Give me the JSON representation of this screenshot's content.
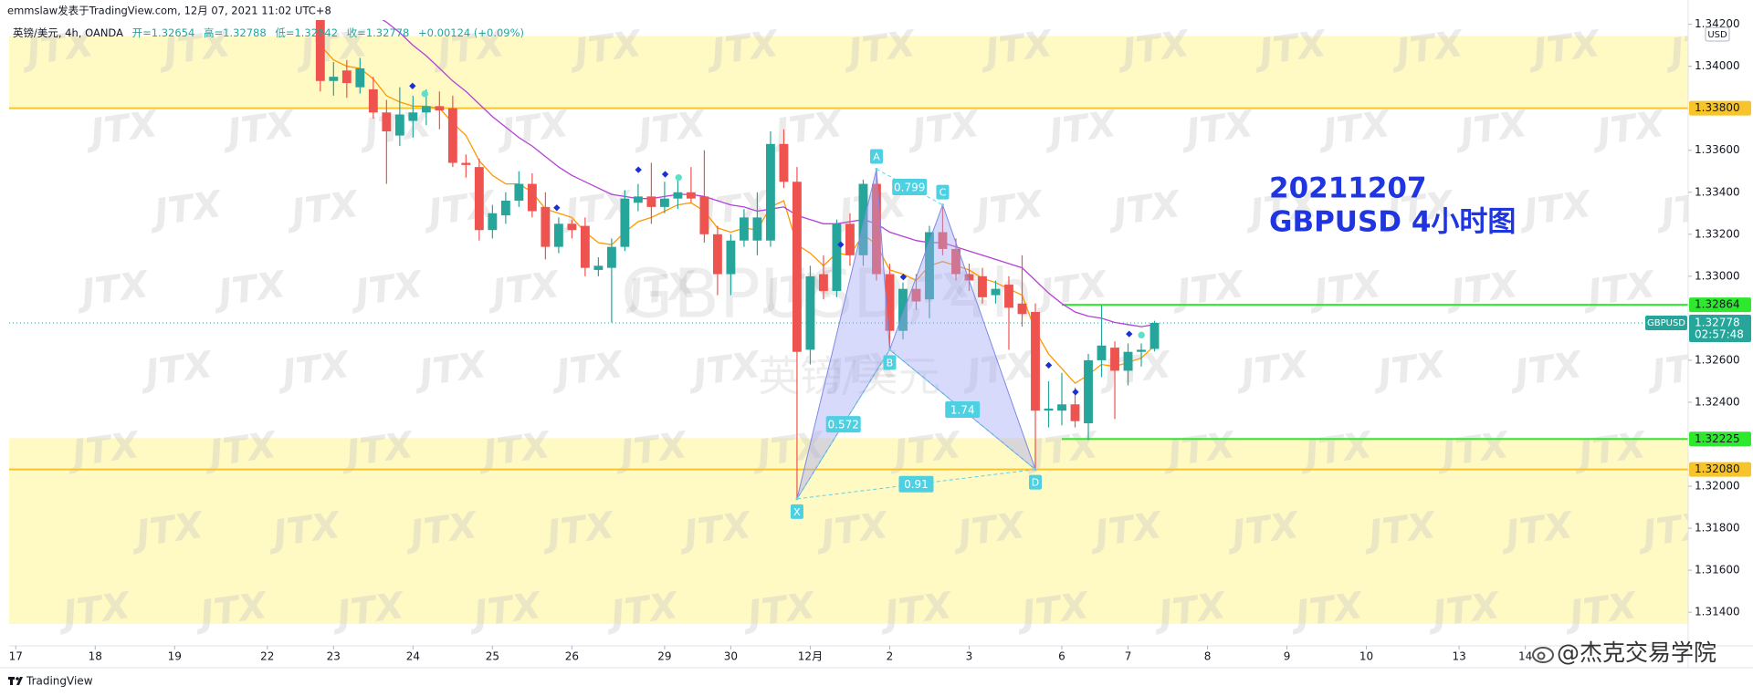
{
  "header": {
    "publisher_line": "emmslaw发表于TradingView.com, 12月 07, 2021 11:02 UTC+8",
    "symbol_line": "英镑/美元, 4h, OANDA",
    "open": "开=1.32654",
    "high": "高=1.32788",
    "low": "低=1.32642",
    "close": "收=1.32778",
    "change": "+0.00124 (+0.09%)"
  },
  "chart_data": {
    "type": "candlestick",
    "up_color": "#26a69a",
    "down_color": "#ef5350",
    "grid": false,
    "xlim": [
      -23.5,
      103.3
    ],
    "xticks": [
      {
        "value": -23,
        "label": "17"
      },
      {
        "value": -17,
        "label": "18"
      },
      {
        "value": -11,
        "label": "19"
      },
      {
        "value": -4,
        "label": "22"
      },
      {
        "value": 1,
        "label": "23"
      },
      {
        "value": 7,
        "label": "24"
      },
      {
        "value": 13,
        "label": "25"
      },
      {
        "value": 19,
        "label": "26"
      },
      {
        "value": 26,
        "label": "29"
      },
      {
        "value": 31,
        "label": "30"
      },
      {
        "value": 37,
        "label": "12月"
      },
      {
        "value": 43,
        "label": "2"
      },
      {
        "value": 49,
        "label": "3"
      },
      {
        "value": 56,
        "label": "6"
      },
      {
        "value": 61,
        "label": "7"
      },
      {
        "value": 67,
        "label": "8"
      },
      {
        "value": 73,
        "label": "9"
      },
      {
        "value": 79,
        "label": "10"
      },
      {
        "value": 86,
        "label": "13"
      },
      {
        "value": 91,
        "label": "14"
      }
    ],
    "ylim": [
      1.3124,
      1.3422
    ],
    "yticks": [
      {
        "value": 1.342,
        "label": "1.34200"
      },
      {
        "value": 1.34,
        "label": "1.34000"
      },
      {
        "value": 1.336,
        "label": "1.33600"
      },
      {
        "value": 1.334,
        "label": "1.33400"
      },
      {
        "value": 1.332,
        "label": "1.33200"
      },
      {
        "value": 1.33,
        "label": "1.33000"
      },
      {
        "value": 1.326,
        "label": "1.32600"
      },
      {
        "value": 1.324,
        "label": "1.32400"
      },
      {
        "value": 1.32,
        "label": "1.32000"
      },
      {
        "value": 1.318,
        "label": "1.31800"
      },
      {
        "value": 1.316,
        "label": "1.31600"
      },
      {
        "value": 1.314,
        "label": "1.31400"
      }
    ],
    "currency": "USD",
    "open": [
      1.343,
      1.3393,
      1.3398,
      1.339,
      1.3389,
      1.3378,
      1.3367,
      1.3374,
      1.3378,
      1.3381,
      1.338,
      1.3354,
      1.3352,
      1.3322,
      1.3329,
      1.3336,
      1.3344,
      1.3333,
      1.3314,
      1.3325,
      1.3324,
      1.3303,
      1.3304,
      1.3314,
      1.3335,
      1.3338,
      1.3333,
      1.3337,
      1.334,
      1.3338,
      1.332,
      1.3301,
      1.3317,
      1.3317,
      1.3317,
      1.3363,
      1.3345,
      1.3265,
      1.3301,
      1.3293,
      1.3325,
      1.331,
      1.3344,
      1.3301,
      1.3274,
      1.3294,
      1.3289,
      1.3321,
      1.3313,
      1.3301,
      1.33,
      1.3291,
      1.3296,
      1.3287,
      1.3283,
      1.3236,
      1.3236,
      1.3239,
      1.323,
      1.326,
      1.3266,
      1.3255,
      1.3264,
      1.32654
    ],
    "high": [
      1.344,
      1.3402,
      1.3403,
      1.3404,
      1.3395,
      1.3384,
      1.339,
      1.3386,
      1.3389,
      1.3388,
      1.3386,
      1.3358,
      1.3356,
      1.3334,
      1.334,
      1.335,
      1.3349,
      1.334,
      1.3328,
      1.3327,
      1.3328,
      1.3309,
      1.3318,
      1.3341,
      1.3344,
      1.3354,
      1.3345,
      1.3346,
      1.3352,
      1.336,
      1.3324,
      1.332,
      1.3332,
      1.334,
      1.3369,
      1.337,
      1.3352,
      1.3305,
      1.331,
      1.3327,
      1.333,
      1.3346,
      1.3351,
      1.3306,
      1.3297,
      1.3301,
      1.3324,
      1.3334,
      1.3318,
      1.3306,
      1.3304,
      1.3298,
      1.33,
      1.331,
      1.3287,
      1.325,
      1.3254,
      1.3247,
      1.3263,
      1.3286,
      1.3269,
      1.3268,
      1.3268,
      1.32788
    ],
    "low": [
      1.3388,
      1.3386,
      1.3385,
      1.3387,
      1.3375,
      1.3344,
      1.3362,
      1.3366,
      1.3372,
      1.337,
      1.3352,
      1.3347,
      1.3317,
      1.3318,
      1.3325,
      1.3333,
      1.3328,
      1.3308,
      1.3311,
      1.3318,
      1.33,
      1.33,
      1.3278,
      1.3312,
      1.3331,
      1.3325,
      1.333,
      1.3332,
      1.3335,
      1.3316,
      1.3291,
      1.3291,
      1.3314,
      1.331,
      1.3314,
      1.3342,
      1.3194,
      1.3258,
      1.3289,
      1.329,
      1.3305,
      1.3305,
      1.3298,
      1.3265,
      1.327,
      1.3284,
      1.328,
      1.331,
      1.3298,
      1.3293,
      1.3287,
      1.3287,
      1.3265,
      1.3276,
      1.3208,
      1.3228,
      1.3229,
      1.3228,
      1.3222,
      1.3252,
      1.3232,
      1.3248,
      1.3257,
      1.32642
    ],
    "close": [
      1.3393,
      1.3395,
      1.3392,
      1.3399,
      1.3378,
      1.3369,
      1.3377,
      1.3378,
      1.3381,
      1.3379,
      1.3354,
      1.3353,
      1.3322,
      1.333,
      1.3336,
      1.3344,
      1.3331,
      1.3314,
      1.3325,
      1.3322,
      1.3304,
      1.3305,
      1.3314,
      1.3337,
      1.3338,
      1.3333,
      1.3337,
      1.334,
      1.3337,
      1.332,
      1.3301,
      1.3317,
      1.3328,
      1.3328,
      1.3363,
      1.3345,
      1.3264,
      1.33,
      1.3293,
      1.3325,
      1.331,
      1.3344,
      1.3301,
      1.3274,
      1.3294,
      1.3288,
      1.3321,
      1.3313,
      1.3301,
      1.3298,
      1.329,
      1.3294,
      1.3285,
      1.3282,
      1.3236,
      1.3237,
      1.3239,
      1.3231,
      1.326,
      1.3267,
      1.3255,
      1.3264,
      1.3265,
      1.32778
    ],
    "moving_averages": [
      {
        "color": "#ff9800",
        "values": [
          1.341,
          1.3403,
          1.34,
          1.3399,
          1.3394,
          1.3386,
          1.3383,
          1.3381,
          1.3381,
          1.338,
          1.3373,
          1.3367,
          1.3355,
          1.3348,
          1.3344,
          1.3344,
          1.334,
          1.3332,
          1.333,
          1.3328,
          1.3321,
          1.3316,
          1.3315,
          1.3321,
          1.3326,
          1.3328,
          1.3331,
          1.3334,
          1.3335,
          1.3331,
          1.3323,
          1.3321,
          1.3323,
          1.3322,
          1.3333,
          1.3336,
          1.3315,
          1.3311,
          1.3305,
          1.3311,
          1.331,
          1.332,
          1.3315,
          1.3303,
          1.3301,
          1.3298,
          1.3305,
          1.3307,
          1.3305,
          1.3303,
          1.3299,
          1.3297,
          1.3294,
          1.3291,
          1.3274,
          1.3263,
          1.3256,
          1.3249,
          1.3253,
          1.3258,
          1.3257,
          1.3259,
          1.3261,
          1.3267
        ]
      },
      {
        "color": "#b540d8",
        "values": [
          1.344,
          1.3436,
          1.3432,
          1.3428,
          1.3425,
          1.3421,
          1.3416,
          1.341,
          1.3405,
          1.3399,
          1.3393,
          1.3388,
          1.3382,
          1.3376,
          1.3371,
          1.3366,
          1.3362,
          1.3357,
          1.3352,
          1.3348,
          1.3345,
          1.3342,
          1.3339,
          1.3338,
          1.3337,
          1.3337,
          1.3338,
          1.3339,
          1.3339,
          1.3338,
          1.3336,
          1.3334,
          1.3333,
          1.3331,
          1.3332,
          1.3333,
          1.3329,
          1.3327,
          1.3325,
          1.3325,
          1.3326,
          1.3327,
          1.3325,
          1.3321,
          1.3319,
          1.3317,
          1.3316,
          1.3316,
          1.3314,
          1.3312,
          1.331,
          1.3308,
          1.3306,
          1.3304,
          1.3298,
          1.3292,
          1.3287,
          1.3283,
          1.3281,
          1.328,
          1.3278,
          1.3277,
          1.3276,
          1.3277
        ]
      }
    ],
    "zones": [
      {
        "from": 1.338,
        "to": 1.34144,
        "color": "#fff9c4"
      },
      {
        "from": 1.31345,
        "to": 1.32229,
        "color": "#fff9c4"
      }
    ],
    "levels": [
      {
        "value": 1.338,
        "label": "1.33800",
        "color": "#f7c52b"
      },
      {
        "value": 1.32864,
        "label": "1.32864",
        "color": "#2ee82e",
        "from": 56
      },
      {
        "value": 1.32225,
        "label": "1.32225",
        "color": "#2ee82e",
        "from": 56
      },
      {
        "value": 1.3208,
        "label": "1.32080",
        "color": "#f7c52b"
      }
    ],
    "price_line": {
      "value": 1.32778,
      "label": "1.32778",
      "countdown": "02:57:48",
      "symbol": "GBPUSD",
      "color": "#26a69a"
    },
    "pattern": {
      "points": [
        {
          "label": "X",
          "x": 36,
          "y": 1.3194
        },
        {
          "label": "A",
          "x": 42,
          "y": 1.3351
        },
        {
          "label": "B",
          "x": 43,
          "y": 1.3265
        },
        {
          "label": "C",
          "x": 47,
          "y": 1.3334
        },
        {
          "label": "D",
          "x": 54,
          "y": 1.3208
        }
      ],
      "ratios": [
        0.572,
        0.799,
        1.74,
        0.91
      ]
    },
    "annotation": [
      "20211207",
      "GBPUSD 4小时图"
    ],
    "watermark": {
      "symbol": "GBPUSD, 4h",
      "description": "英镑/美元"
    },
    "logo_watermark": "JTX"
  },
  "footer": {
    "brand": "TradingView",
    "credit": "@杰克交易学院"
  }
}
